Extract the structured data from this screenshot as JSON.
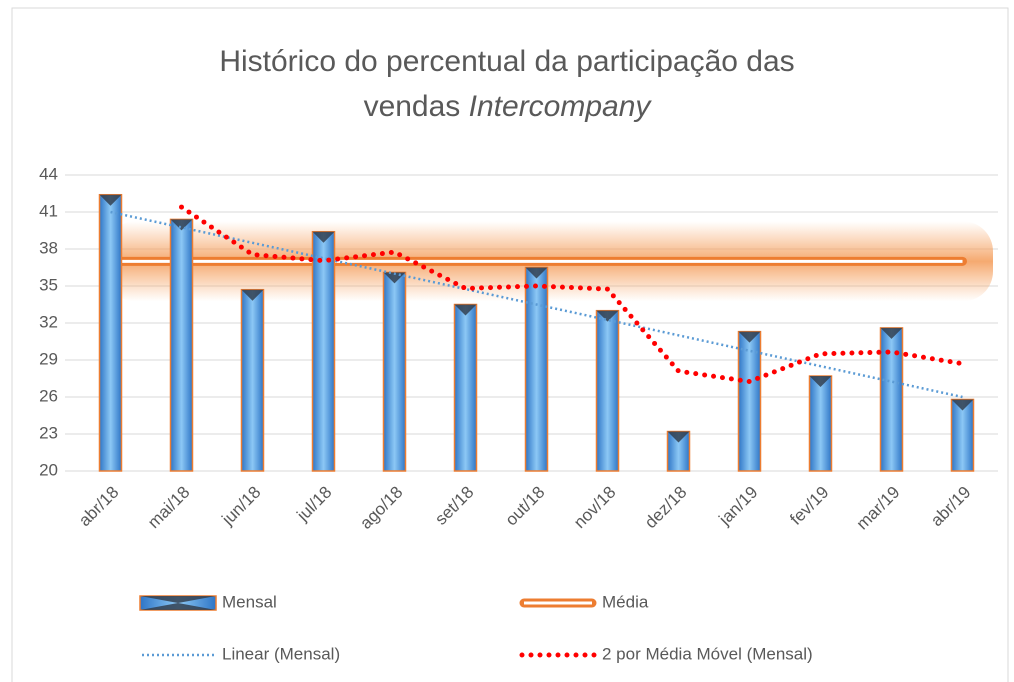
{
  "chart_data": {
    "type": "bar",
    "title": {
      "line1": "Histórico do percentual da participação das",
      "line2": "vendas",
      "line2_italic": "Intercompany"
    },
    "categories": [
      "abr/18",
      "mai/18",
      "jun/18",
      "jul/18",
      "ago/18",
      "set/18",
      "out/18",
      "nov/18",
      "dez/18",
      "jan/19",
      "fev/19",
      "mar/19",
      "abr/19"
    ],
    "ylim": [
      20,
      44
    ],
    "yticks": [
      20,
      23,
      26,
      29,
      32,
      35,
      38,
      41,
      44
    ],
    "grid": true,
    "legend": "bottom",
    "series": [
      {
        "name": "Mensal",
        "type": "bar",
        "color": "#5aa7e8",
        "values": [
          42.4,
          40.4,
          34.7,
          39.4,
          36.1,
          33.5,
          36.5,
          33.0,
          23.2,
          31.3,
          27.7,
          31.6,
          25.8
        ]
      },
      {
        "name": "Média",
        "type": "line",
        "style": "double",
        "color": "#ed7d31",
        "values": [
          37,
          37,
          37,
          37,
          37,
          37,
          37,
          37,
          37,
          37,
          37,
          37,
          37
        ]
      },
      {
        "name": "Linear (Mensal)",
        "type": "line",
        "style": "dotted",
        "color": "#5b9bd5",
        "values": [
          41,
          39.75,
          38.5,
          37.25,
          36,
          34.75,
          33.5,
          32.25,
          31,
          29.75,
          28.5,
          27.25,
          26
        ]
      },
      {
        "name": "2 por Média Móvel (Mensal)",
        "type": "line",
        "style": "dots",
        "color": "#ff0000",
        "values": [
          null,
          41.4,
          37.55,
          37.05,
          37.75,
          34.8,
          35,
          34.75,
          28.1,
          27.25,
          29.5,
          29.65,
          28.7
        ]
      }
    ]
  }
}
